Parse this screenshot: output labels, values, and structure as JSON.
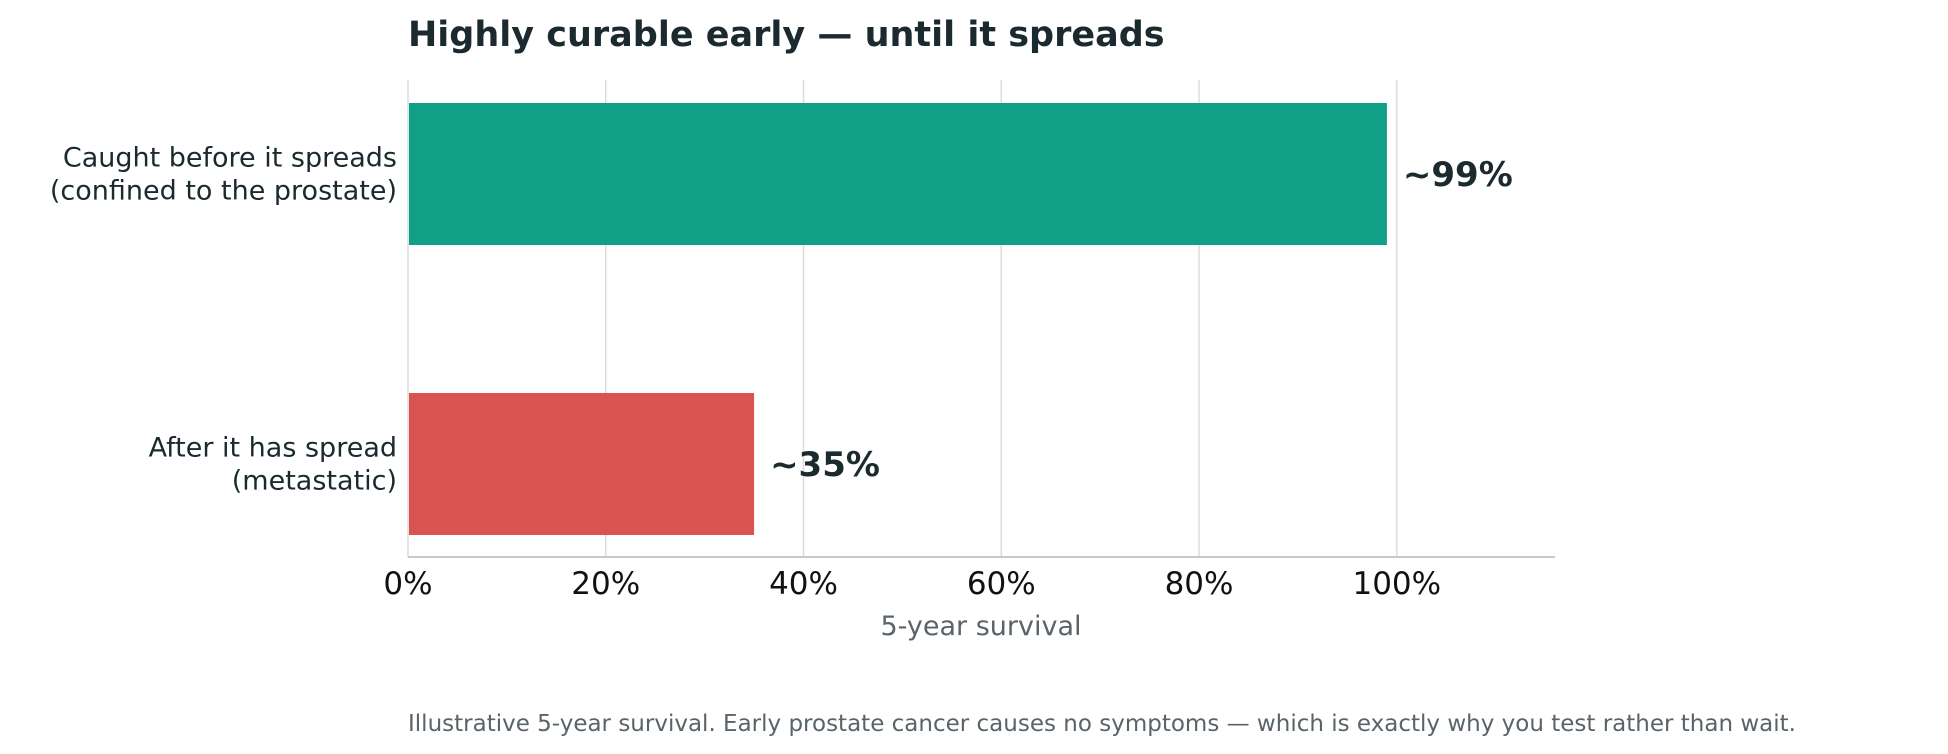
{
  "chart_data": {
    "type": "bar",
    "orientation": "horizontal",
    "title": "Highly curable early — until it spreads",
    "xlabel": "5-year survival",
    "ylabel": "",
    "xlim": [
      0,
      116
    ],
    "x_ticks": [
      0,
      20,
      40,
      60,
      80,
      100
    ],
    "x_tick_labels": [
      "0%",
      "20%",
      "40%",
      "60%",
      "80%",
      "100%"
    ],
    "grid": "vertical",
    "categories": [
      [
        "Caught before it spreads",
        "(confined to the prostate)"
      ],
      [
        "After it has spread",
        "(metastatic)"
      ]
    ],
    "values": [
      99,
      35
    ],
    "value_labels": [
      "~99%",
      "~35%"
    ],
    "colors": [
      "#10a088",
      "#d95350"
    ],
    "footnote": "Illustrative 5-year survival. Early prostate cancer causes no symptoms — which is exactly why you test rather than wait."
  }
}
